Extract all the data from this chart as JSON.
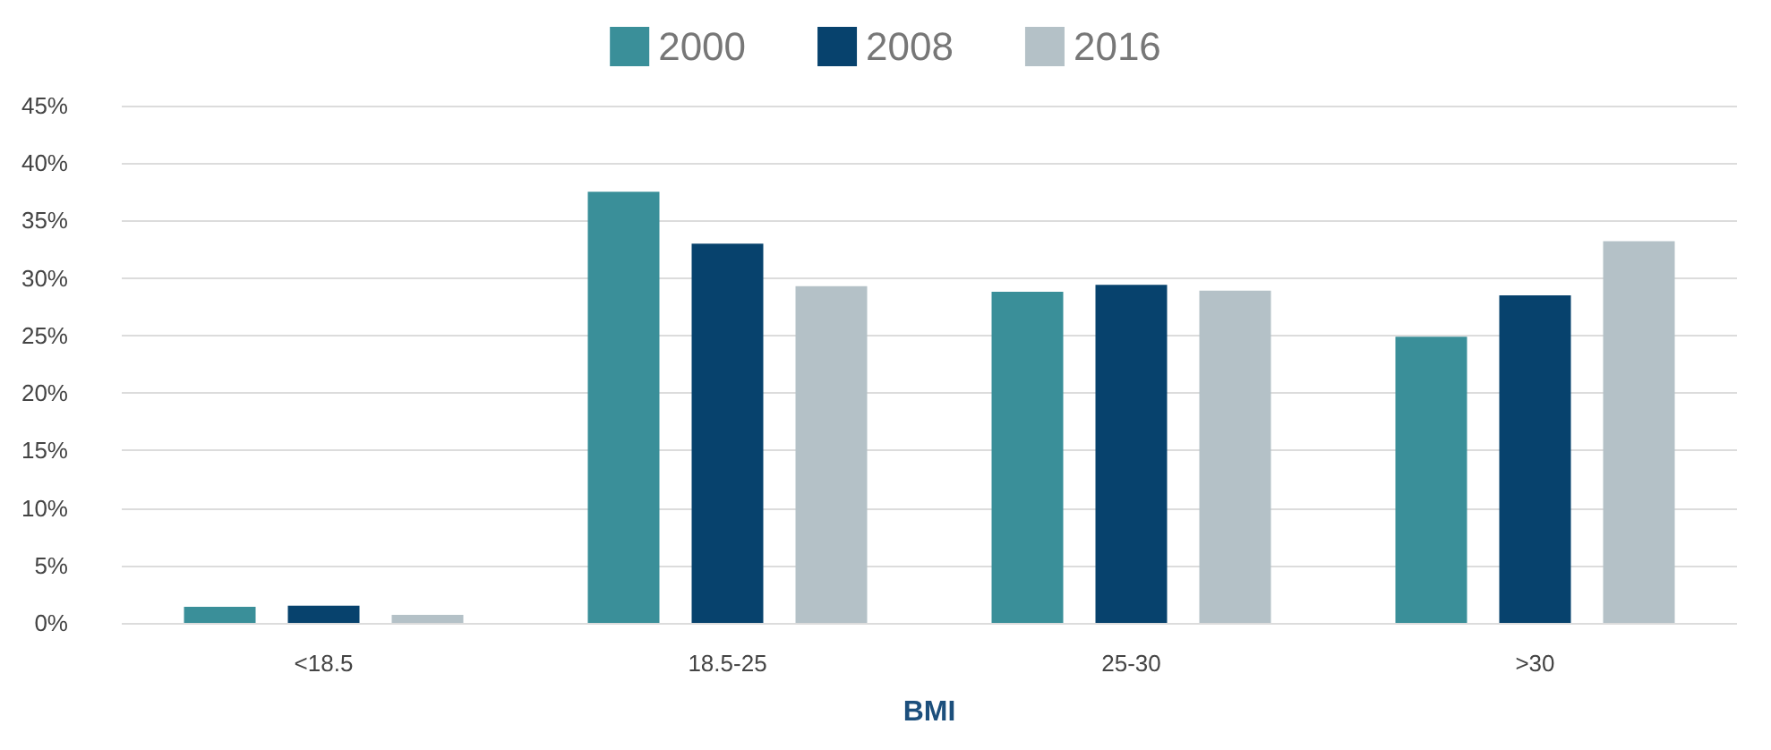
{
  "chart_data": {
    "type": "bar",
    "xlabel": "BMI",
    "categories": [
      "<18.5",
      "18.5-25",
      "25-30",
      ">30"
    ],
    "series": [
      {
        "name": "2000",
        "color": "#3a8f99",
        "values": [
          1.4,
          37.5,
          28.8,
          24.9
        ]
      },
      {
        "name": "2008",
        "color": "#07426d",
        "values": [
          1.5,
          33.0,
          29.4,
          28.5
        ]
      },
      {
        "name": "2016",
        "color": "#b4c1c7",
        "values": [
          0.7,
          29.3,
          28.9,
          33.2
        ]
      }
    ],
    "ylim": [
      0,
      45
    ],
    "yticks": [
      {
        "value": 0,
        "label": "0%"
      },
      {
        "value": 5,
        "label": "5%"
      },
      {
        "value": 10,
        "label": "10%"
      },
      {
        "value": 15,
        "label": "15%"
      },
      {
        "value": 20,
        "label": "20%"
      },
      {
        "value": 25,
        "label": "25%"
      },
      {
        "value": 30,
        "label": "30%"
      },
      {
        "value": 35,
        "label": "35%"
      },
      {
        "value": 40,
        "label": "40%"
      },
      {
        "value": 45,
        "label": "45%"
      }
    ],
    "grid": "y",
    "legend": "top"
  }
}
